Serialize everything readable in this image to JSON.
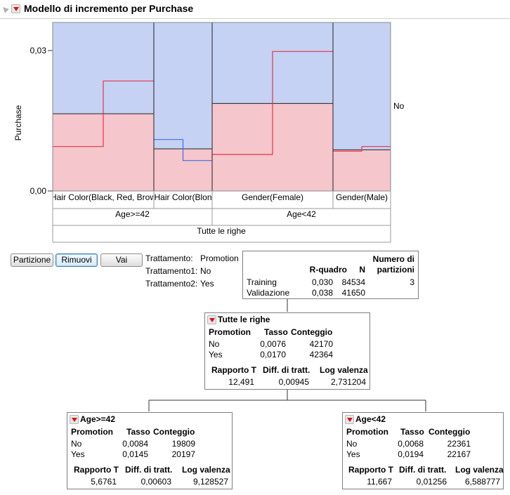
{
  "title": "Modello di incremento per Purchase",
  "chart_data": {
    "type": "bar",
    "ylabel": "Purchase",
    "ylim": [
      0,
      0.03
    ],
    "yticks": [
      "0,00",
      "0,03"
    ],
    "right_label": "No",
    "partitions": [
      {
        "label": "Hair Color(Black, Red, Brow",
        "rate": 0.0165,
        "no_rate": 0.0095,
        "yes_rate": 0.0235
      },
      {
        "label": "Hair Color(Blon",
        "rate": 0.009,
        "no_rate": 0.011,
        "yes_rate": 0.0065
      },
      {
        "label": "Gender(Female)",
        "rate": 0.0187,
        "no_rate": 0.0078,
        "yes_rate": 0.0298
      },
      {
        "label": "Gender(Male)",
        "rate": 0.0088,
        "no_rate": 0.0085,
        "yes_rate": 0.0095
      }
    ],
    "level2": [
      "Age>=42",
      "Age<42"
    ],
    "level3": "Tutte le righe",
    "colors": {
      "yes_area": "#f5c6cc",
      "no_area": "#c5d2f3",
      "yes_line": "#e6324b",
      "no_line": "#3f6fe0",
      "divider": "#222222"
    }
  },
  "buttons": {
    "partition": "Partizione",
    "remove": "Rimuovi",
    "go": "Vai"
  },
  "treatment": {
    "label": "Trattamento:",
    "value": "Promotion",
    "t1_label": "Trattamento1:",
    "t1_value": "No",
    "t2_label": "Trattamento2:",
    "t2_value": "Yes"
  },
  "summary": {
    "headers": {
      "rsq": "R-quadro",
      "n": "N",
      "splits_1": "Numero di",
      "splits_2": "partizioni"
    },
    "rows": [
      {
        "label": "Training",
        "rsq": "0,030",
        "n": "84534",
        "splits": "3"
      },
      {
        "label": "Validazione",
        "rsq": "0,038",
        "n": "41650",
        "splits": ""
      }
    ]
  },
  "node_headers": {
    "promotion": "Promotion",
    "rate": "Tasso",
    "count": "Conteggio",
    "t_ratio": "Rapporto T",
    "diff": "Diff. di tratt.",
    "logworth": "Log valenza"
  },
  "nodes": {
    "root": {
      "title": "Tutte le righe",
      "rows": [
        {
          "label": "No",
          "rate": "0,0076",
          "count": "42170"
        },
        {
          "label": "Yes",
          "rate": "0,0170",
          "count": "42364"
        }
      ],
      "t_ratio": "12,491",
      "diff": "0,00945",
      "logworth": "2,731204"
    },
    "left": {
      "title": "Age>=42",
      "rows": [
        {
          "label": "No",
          "rate": "0,0084",
          "count": "19809"
        },
        {
          "label": "Yes",
          "rate": "0,0145",
          "count": "20197"
        }
      ],
      "t_ratio": "5,6761",
      "diff": "0,00603",
      "logworth": "9,128527"
    },
    "right": {
      "title": "Age<42",
      "rows": [
        {
          "label": "No",
          "rate": "0,0068",
          "count": "22361"
        },
        {
          "label": "Yes",
          "rate": "0,0194",
          "count": "22167"
        }
      ],
      "t_ratio": "11,667",
      "diff": "0,01256",
      "logworth": "6,588777"
    }
  }
}
